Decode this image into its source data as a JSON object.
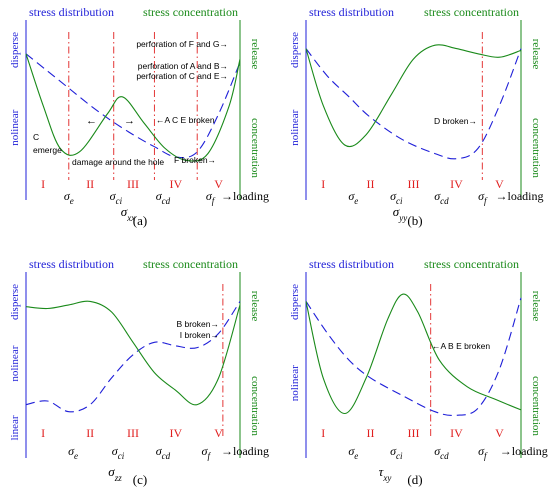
{
  "colors": {
    "blue": "#1f1fd8",
    "green": "#1a8a1a",
    "red": "#e02020",
    "axis": "#1f1fd8",
    "black": "#000000"
  },
  "common": {
    "left_title": "stress distribution",
    "right_title": "stress concentration",
    "release": "release",
    "concentration": "concentration",
    "loading": "→loading",
    "stages": [
      "I",
      "II",
      "III",
      "IV",
      "V"
    ],
    "sigma": "σ",
    "tau": "τ"
  },
  "chart_data": [
    {
      "id": "a",
      "type": "line",
      "panel_label": "(a)",
      "ylabel_left_top": "disperse",
      "ylabel_left_bottom": "nolinear",
      "xlabel": {
        "symbol": "σ",
        "sub": "xx"
      },
      "x_ticks": [
        {
          "symbol": "σ",
          "sub": "e"
        },
        {
          "symbol": "σ",
          "sub": "ci"
        },
        {
          "symbol": "σ",
          "sub": "cd"
        },
        {
          "symbol": "σ",
          "sub": "f"
        }
      ],
      "annotations": {
        "fg": "perforation of F and G→",
        "ab": "perforation of A and B→",
        "ce": "perforation of C and E→",
        "ace": "←A C E broken",
        "c_emerge_1": "C",
        "c_emerge_2": "emerge",
        "damage": "damage around the hole",
        "f_broken": "F broken→"
      },
      "series": [
        {
          "name": "",
          "style": "dashed",
          "color": "blue",
          "x": [
            0,
            0.1,
            0.2,
            0.3,
            0.4,
            0.5,
            0.6,
            0.7,
            0.8,
            0.9,
            1.0
          ],
          "y": [
            0.85,
            0.75,
            0.65,
            0.55,
            0.46,
            0.38,
            0.31,
            0.25,
            0.28,
            0.5,
            0.8
          ]
        },
        {
          "name": "",
          "style": "solid",
          "color": "green",
          "x": [
            0,
            0.08,
            0.16,
            0.25,
            0.38,
            0.45,
            0.55,
            0.65,
            0.75,
            0.85,
            0.95,
            1.0
          ],
          "y": [
            0.85,
            0.55,
            0.3,
            0.28,
            0.5,
            0.6,
            0.45,
            0.3,
            0.23,
            0.27,
            0.55,
            0.82
          ]
        }
      ]
    },
    {
      "id": "b",
      "type": "line",
      "panel_label": "(b)",
      "ylabel_left_top": "disperse",
      "ylabel_left_bottom": "nolinear",
      "xlabel": {
        "symbol": "σ",
        "sub": "yy"
      },
      "x_ticks": [
        {
          "symbol": "σ",
          "sub": "e"
        },
        {
          "symbol": "σ",
          "sub": "ci"
        },
        {
          "symbol": "σ",
          "sub": "cd"
        },
        {
          "symbol": "σ",
          "sub": "f"
        }
      ],
      "annotations": {
        "d_broken": "D broken→"
      },
      "series": [
        {
          "name": "",
          "style": "dashed",
          "color": "blue",
          "x": [
            0,
            0.1,
            0.2,
            0.3,
            0.45,
            0.6,
            0.7,
            0.8,
            0.9,
            1.0
          ],
          "y": [
            0.88,
            0.72,
            0.6,
            0.48,
            0.35,
            0.27,
            0.24,
            0.3,
            0.55,
            0.88
          ]
        },
        {
          "name": "",
          "style": "solid",
          "color": "green",
          "x": [
            0,
            0.08,
            0.18,
            0.28,
            0.4,
            0.5,
            0.6,
            0.7,
            0.8,
            0.9,
            1.0
          ],
          "y": [
            0.88,
            0.55,
            0.32,
            0.38,
            0.62,
            0.82,
            0.9,
            0.88,
            0.85,
            0.83,
            0.87
          ]
        }
      ]
    },
    {
      "id": "c",
      "type": "line",
      "panel_label": "(c)",
      "ylabel_left_top": "disperse",
      "ylabel_left_mid": "nolinear",
      "ylabel_left_bottom": "linear",
      "xlabel": {
        "symbol": "σ",
        "sub": "zz"
      },
      "x_ticks": [
        {
          "symbol": "σ",
          "sub": "e"
        },
        {
          "symbol": "σ",
          "sub": "ci"
        },
        {
          "symbol": "σ",
          "sub": "cd"
        },
        {
          "symbol": "σ",
          "sub": "f"
        }
      ],
      "annotations": {
        "b_broken": "B broken→",
        "i_broken": "I broken→"
      },
      "series": [
        {
          "name": "",
          "style": "dashed",
          "color": "blue",
          "x": [
            0,
            0.1,
            0.2,
            0.3,
            0.4,
            0.5,
            0.6,
            0.7,
            0.8,
            0.9,
            1.0
          ],
          "y": [
            0.3,
            0.32,
            0.26,
            0.3,
            0.45,
            0.58,
            0.65,
            0.63,
            0.62,
            0.7,
            0.88
          ]
        },
        {
          "name": "",
          "style": "solid",
          "color": "green",
          "x": [
            0,
            0.1,
            0.2,
            0.3,
            0.4,
            0.5,
            0.6,
            0.7,
            0.8,
            0.9,
            1.0
          ],
          "y": [
            0.85,
            0.84,
            0.86,
            0.88,
            0.82,
            0.65,
            0.48,
            0.38,
            0.3,
            0.45,
            0.86
          ]
        }
      ]
    },
    {
      "id": "d",
      "type": "line",
      "panel_label": "(d)",
      "ylabel_left_top": "disperse",
      "ylabel_left_bottom": "nolinear",
      "xlabel": {
        "symbol": "τ",
        "sub": "xy"
      },
      "x_ticks": [
        {
          "symbol": "σ",
          "sub": "e"
        },
        {
          "symbol": "σ",
          "sub": "ci"
        },
        {
          "symbol": "σ",
          "sub": "cd"
        },
        {
          "symbol": "σ",
          "sub": "f"
        }
      ],
      "annotations": {
        "abe_broken": "←A B E broken"
      },
      "series": [
        {
          "name": "",
          "style": "dashed",
          "color": "blue",
          "x": [
            0,
            0.1,
            0.2,
            0.3,
            0.45,
            0.6,
            0.7,
            0.8,
            0.9,
            1.0
          ],
          "y": [
            0.88,
            0.7,
            0.55,
            0.45,
            0.35,
            0.26,
            0.24,
            0.28,
            0.5,
            0.9
          ]
        },
        {
          "name": "",
          "style": "solid",
          "color": "green",
          "x": [
            0,
            0.08,
            0.18,
            0.28,
            0.38,
            0.45,
            0.52,
            0.62,
            0.75,
            0.88,
            1.0
          ],
          "y": [
            0.88,
            0.45,
            0.25,
            0.45,
            0.78,
            0.92,
            0.82,
            0.55,
            0.4,
            0.33,
            0.27
          ]
        }
      ]
    }
  ]
}
